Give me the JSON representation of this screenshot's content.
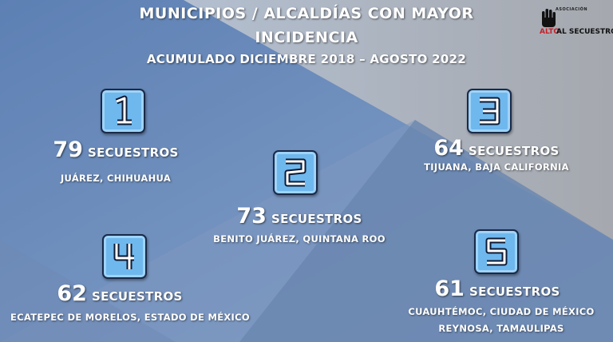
{
  "header": {
    "line1": "MUNICIPIOS / ALCALDÍAS CON MAYOR",
    "line2": "INCIDENCIA",
    "subtitle": "ACUMULADO DICIEMBRE 2018 – AGOSTO 2022"
  },
  "logo": {
    "association": "ASOCIACIÓN",
    "alto": "ALTO",
    "secuestro": "AL SECUESTRO"
  },
  "rankings": [
    {
      "rank": "1",
      "count": "79",
      "word": "SECUESTROS",
      "places": [
        "JUÁREZ, CHIHUAHUA"
      ]
    },
    {
      "rank": "2",
      "count": "73",
      "word": "SECUESTROS",
      "places": [
        "BENITO JUÁREZ, QUINTANA ROO"
      ]
    },
    {
      "rank": "3",
      "count": "64",
      "word": "SECUESTROS",
      "places": [
        "TIJUANA, BAJA CALIFORNIA"
      ]
    },
    {
      "rank": "4",
      "count": "62",
      "word": "SECUESTROS",
      "places": [
        "ECATEPEC DE MORELOS, ESTADO DE MÉXICO"
      ]
    },
    {
      "rank": "5",
      "count": "61",
      "word": "SECUESTROS",
      "places": [
        "CUAUHTÉMOC, CIUDAD DE MÉXICO",
        "REYNOSA, TAMAULIPAS"
      ]
    }
  ],
  "colors": {
    "badge": "#6fb8ee",
    "badge_border": "#1a2a48",
    "background_left": "#7a95be",
    "background_right": "#a7b6cc"
  }
}
